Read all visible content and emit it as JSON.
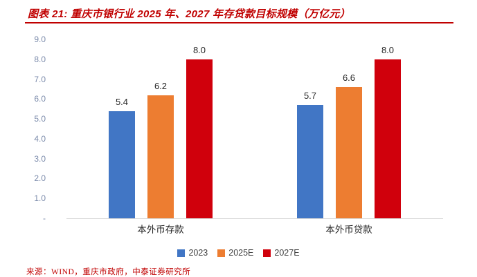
{
  "title": "图表 21: 重庆市银行业 2025 年、2027 年存贷款目标规模（万亿元）",
  "source": "来源：WIND，重庆市政府，中泰证券研究所",
  "colors": {
    "title_red": "#c00000",
    "axis_label": "#7b8bab",
    "baseline_gray": "#d9d9d9",
    "value_label": "#262626"
  },
  "chart_data": {
    "type": "bar",
    "title": "图表 21: 重庆市银行业 2025 年、2027 年存贷款目标规模（万亿元）",
    "categories": [
      "本外币存款",
      "本外币贷款"
    ],
    "series": [
      {
        "name": "2023",
        "color": "#4176c5",
        "values": [
          5.4,
          5.7
        ]
      },
      {
        "name": "2025E",
        "color": "#ed7d31",
        "values": [
          6.2,
          6.6
        ]
      },
      {
        "name": "2027E",
        "color": "#d0000c",
        "values": [
          8.0,
          8.0
        ]
      }
    ],
    "ylim": [
      0,
      9
    ],
    "ytick_labels": [
      "9.0",
      "8.0",
      "7.0",
      "6.0",
      "5.0",
      "4.0",
      "3.0",
      "2.0",
      "1.0",
      "-"
    ],
    "value_labels": [
      [
        "5.4",
        "6.2",
        "8.0"
      ],
      [
        "5.7",
        "6.6",
        "8.0"
      ]
    ],
    "grid": false,
    "legend_position": "bottom",
    "unit": "万亿元"
  }
}
